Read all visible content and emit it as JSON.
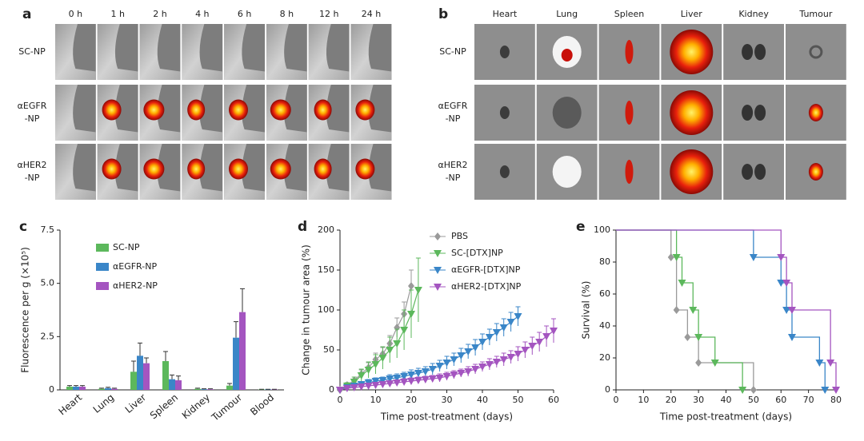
{
  "panel_a": {
    "letter": "a",
    "columns": [
      "0 h",
      "1 h",
      "2 h",
      "4 h",
      "6 h",
      "8 h",
      "12 h",
      "24 h"
    ],
    "rows": [
      [
        "SC-NP"
      ],
      [
        "αEGFR",
        "-NP"
      ],
      [
        "αHER2",
        "-NP"
      ]
    ]
  },
  "panel_b": {
    "letter": "b",
    "columns": [
      "Heart",
      "Lung",
      "Spleen",
      "Liver",
      "Kidney",
      "Tumour"
    ],
    "rows": [
      [
        "SC-NP"
      ],
      [
        "αEGFR",
        "-NP"
      ],
      [
        "αHER2",
        "-NP"
      ]
    ]
  },
  "chart_data": [
    {
      "type": "bar",
      "panel": "c",
      "ylabel": "Fluorescence per g (×10⁵)",
      "categories": [
        "Heart",
        "Lung",
        "Liver",
        "Spleen",
        "Kidney",
        "Tumour",
        "Blood"
      ],
      "ylim": [
        0,
        7.5
      ],
      "yticks": [
        0,
        2.5,
        {
          "value": 5,
          "label": "5.0"
        },
        7.5
      ],
      "series": [
        {
          "name": "SC-NP",
          "color": "#5cb85c",
          "values": [
            0.15,
            0.05,
            0.85,
            1.35,
            0.05,
            0.2,
            0.02
          ],
          "errors": [
            0.05,
            0.03,
            0.5,
            0.45,
            0.03,
            0.1,
            0.01
          ]
        },
        {
          "name": "αEGFR-NP",
          "color": "#3a86c8",
          "values": [
            0.15,
            0.08,
            1.6,
            0.5,
            0.03,
            2.45,
            0.02
          ],
          "errors": [
            0.05,
            0.04,
            0.6,
            0.2,
            0.02,
            0.75,
            0.01
          ]
        },
        {
          "name": "αHER2-NP",
          "color": "#a455c0",
          "values": [
            0.15,
            0.05,
            1.25,
            0.45,
            0.03,
            3.65,
            0.02
          ],
          "errors": [
            0.05,
            0.03,
            0.25,
            0.2,
            0.02,
            1.1,
            0.01
          ]
        }
      ]
    },
    {
      "type": "line",
      "panel": "d",
      "xlabel": "Time post-treatment (days)",
      "ylabel": "Change in tumour area (%)",
      "xlim": [
        0,
        60
      ],
      "xticks": [
        0,
        10,
        20,
        30,
        40,
        50,
        60
      ],
      "ylim": [
        0,
        200
      ],
      "yticks": [
        0,
        50,
        100,
        150,
        200
      ],
      "series": [
        {
          "name": "PBS",
          "color": "#9a9a9a",
          "marker": "diamond",
          "x": [
            0,
            2,
            4,
            6,
            8,
            10,
            12,
            14,
            16,
            18,
            20
          ],
          "values": [
            0,
            6,
            12,
            20,
            28,
            38,
            45,
            58,
            78,
            95,
            130
          ],
          "errors": [
            0,
            3,
            4,
            5,
            6,
            8,
            8,
            10,
            12,
            15,
            20
          ]
        },
        {
          "name": "SC-[DTX]NP",
          "color": "#5cb85c",
          "marker": "triangle-down",
          "x": [
            0,
            2,
            4,
            6,
            8,
            10,
            12,
            14,
            16,
            18,
            20,
            22
          ],
          "values": [
            0,
            5,
            10,
            18,
            25,
            32,
            40,
            50,
            58,
            75,
            95,
            125
          ],
          "errors": [
            0,
            4,
            6,
            8,
            10,
            12,
            14,
            16,
            18,
            25,
            30,
            40
          ]
        },
        {
          "name": "αEGFR-[DTX]NP",
          "color": "#3a86c8",
          "marker": "triangle-down",
          "x": [
            0,
            2,
            4,
            6,
            8,
            10,
            12,
            14,
            16,
            18,
            20,
            22,
            24,
            26,
            28,
            30,
            32,
            34,
            36,
            38,
            40,
            42,
            44,
            46,
            48,
            50
          ],
          "values": [
            0,
            3,
            5,
            7,
            9,
            11,
            12,
            14,
            15,
            17,
            19,
            21,
            23,
            26,
            30,
            34,
            38,
            43,
            48,
            53,
            60,
            66,
            72,
            78,
            85,
            92
          ],
          "errors": [
            0,
            2,
            3,
            3,
            4,
            4,
            4,
            5,
            5,
            5,
            6,
            6,
            6,
            7,
            7,
            8,
            8,
            9,
            9,
            10,
            10,
            10,
            11,
            11,
            12,
            12
          ]
        },
        {
          "name": "αHER2-[DTX]NP",
          "color": "#a455c0",
          "marker": "triangle-down",
          "x": [
            0,
            2,
            4,
            6,
            8,
            10,
            12,
            14,
            16,
            18,
            20,
            22,
            24,
            26,
            28,
            30,
            32,
            34,
            36,
            38,
            40,
            42,
            44,
            46,
            48,
            50,
            52,
            54,
            56,
            58,
            60
          ],
          "values": [
            0,
            2,
            3,
            4,
            5,
            6,
            7,
            8,
            9,
            10,
            11,
            12,
            13,
            14,
            15,
            17,
            19,
            21,
            23,
            26,
            29,
            32,
            35,
            38,
            41,
            45,
            50,
            55,
            60,
            67,
            74
          ],
          "errors": [
            0,
            2,
            2,
            2,
            3,
            3,
            3,
            3,
            3,
            4,
            4,
            4,
            4,
            4,
            5,
            5,
            5,
            5,
            6,
            6,
            6,
            7,
            7,
            8,
            8,
            9,
            10,
            11,
            12,
            13,
            15
          ]
        }
      ]
    },
    {
      "type": "step",
      "panel": "e",
      "xlabel": "Time post-treatment (days)",
      "ylabel": "Survival (%)",
      "xlim": [
        0,
        80
      ],
      "xticks": [
        0,
        10,
        20,
        30,
        40,
        50,
        60,
        70,
        80
      ],
      "ylim": [
        0,
        100
      ],
      "yticks": [
        0,
        20,
        40,
        60,
        80,
        100
      ],
      "series": [
        {
          "color": "#9a9a9a",
          "marker": "diamond",
          "x": [
            0,
            20,
            22,
            26,
            30,
            50
          ],
          "values": [
            100,
            83,
            50,
            33,
            17,
            0
          ]
        },
        {
          "color": "#5cb85c",
          "marker": "triangle-down",
          "x": [
            0,
            22,
            24,
            28,
            30,
            36,
            46
          ],
          "values": [
            100,
            83,
            67,
            50,
            33,
            17,
            0
          ]
        },
        {
          "color": "#3a86c8",
          "marker": "triangle-down",
          "x": [
            0,
            50,
            60,
            62,
            64,
            74,
            76
          ],
          "values": [
            100,
            83,
            67,
            50,
            33,
            17,
            0
          ]
        },
        {
          "color": "#a455c0",
          "marker": "triangle-down",
          "x": [
            0,
            60,
            62,
            64,
            78,
            80
          ],
          "values": [
            100,
            83,
            67,
            50,
            17,
            0
          ]
        }
      ]
    }
  ]
}
